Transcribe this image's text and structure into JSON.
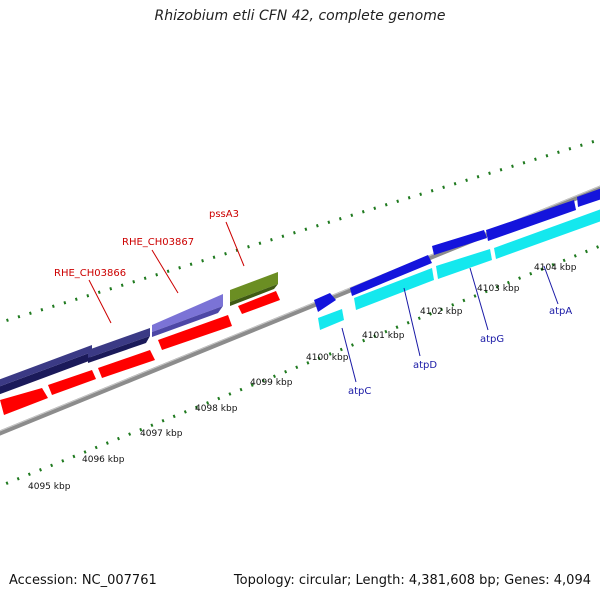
{
  "title": "Rhizobium etli CFN 42, complete genome",
  "footer": {
    "accession": "Accession: NC_007761",
    "summary": "Topology: circular; Length: 4,381,608 bp; Genes: 4,094"
  },
  "colors": {
    "backbone": "#8c8c8c",
    "tick": "#1f7a1f",
    "forward_cds": "#3b3a85",
    "forward_cds_light": "#7b73d6",
    "reverse_cds": "#ff0000",
    "forward_atp": "#1414dc",
    "reverse_atp": "#14e8ee",
    "pss": "#6b8e23",
    "label_red": "#cc0000",
    "label_blue": "#1a1aa6"
  },
  "scale": {
    "tick_labels": [
      "4095 kbp",
      "4096 kbp",
      "4097 kbp",
      "4098 kbp",
      "4099 kbp",
      "4100 kbp",
      "4101 kbp",
      "4102 kbp",
      "4103 kbp",
      "4104 kbp"
    ]
  },
  "gene_labels": {
    "top": [
      "pssA3",
      "RHE_CH03867",
      "RHE_CH03866"
    ],
    "bottom": [
      "atpC",
      "atpD",
      "atpG",
      "atpA"
    ]
  }
}
